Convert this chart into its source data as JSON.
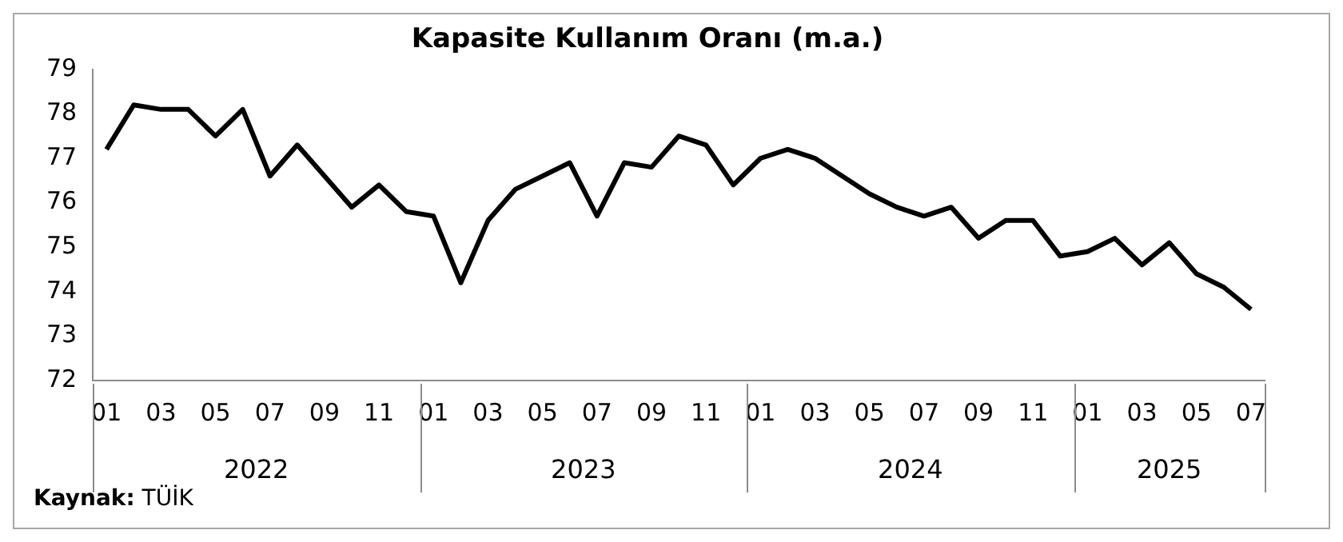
{
  "chart_data": {
    "type": "line",
    "title": "Kapasite Kullanım Oranı (m.a.)",
    "categories": [
      "01",
      null,
      "03",
      null,
      "05",
      null,
      "07",
      null,
      "09",
      null,
      "11",
      null,
      "01",
      null,
      "03",
      null,
      "05",
      null,
      "07",
      null,
      "09",
      null,
      "11",
      null,
      "01",
      null,
      "03",
      null,
      "05",
      null,
      "07",
      null,
      "09",
      null,
      "11",
      null,
      "01",
      null,
      "03",
      null,
      "05",
      null,
      "07"
    ],
    "series": [
      {
        "color": "#000000",
        "values": [
          77.2,
          78.2,
          78.1,
          78.1,
          77.5,
          78.1,
          76.6,
          77.3,
          76.6,
          75.9,
          76.4,
          75.8,
          75.7,
          74.2,
          75.6,
          76.3,
          76.6,
          76.9,
          75.7,
          76.9,
          76.8,
          77.5,
          77.3,
          76.4,
          77.0,
          77.2,
          77.0,
          76.6,
          76.2,
          75.9,
          75.7,
          75.9,
          75.2,
          75.6,
          75.6,
          74.8,
          74.9,
          75.2,
          74.6,
          75.1,
          74.4,
          74.1,
          73.6
        ]
      }
    ],
    "ylim": [
      72,
      79
    ],
    "yticks": [
      72,
      73,
      74,
      75,
      76,
      77,
      78,
      79
    ],
    "grid": false,
    "legend": false,
    "marker": "none",
    "line_style": "solid",
    "annotations": [
      "2022",
      "2023",
      "2024",
      "2025",
      "Kaynak: TÜİK"
    ]
  }
}
